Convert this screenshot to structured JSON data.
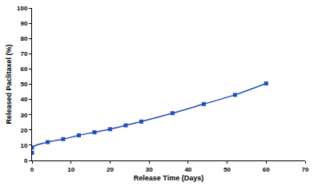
{
  "chart_data": {
    "type": "line",
    "x_label": "Release Time (Days)",
    "y_label": "Released Paclitaxel (%)",
    "x": [
      0,
      0,
      4,
      8,
      12,
      16,
      20,
      24,
      28,
      36,
      44,
      52,
      60
    ],
    "values": [
      5,
      8.5,
      12,
      14,
      16.5,
      18.5,
      20.5,
      23,
      25.5,
      31,
      37,
      43,
      50.5
    ],
    "color": "#1f4fbf",
    "marker": "square",
    "line_style": "smooth",
    "xlim": [
      0,
      70
    ],
    "xticks": [
      0,
      10,
      20,
      30,
      40,
      50,
      60,
      70
    ],
    "ylim": [
      0,
      100
    ],
    "yticks": [
      0,
      10,
      20,
      30,
      40,
      50,
      60,
      70,
      80,
      90,
      100
    ],
    "grid": false
  }
}
